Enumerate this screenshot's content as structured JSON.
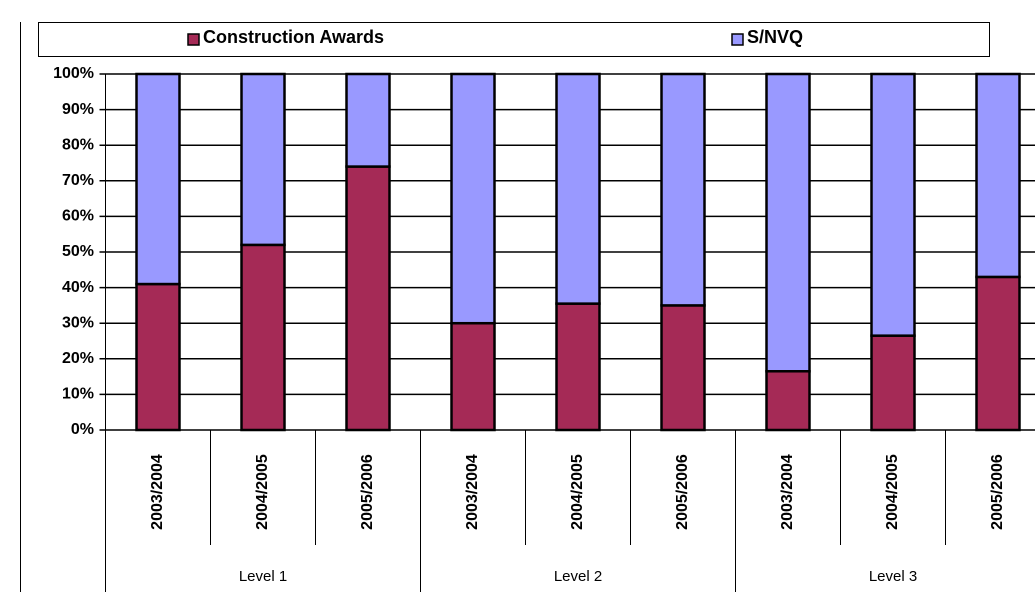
{
  "chart_data": {
    "type": "stacked_bar_percent",
    "categories": [
      "2003/2004",
      "2004/2005",
      "2005/2006",
      "2003/2004",
      "2004/2005",
      "2005/2006",
      "2003/2004",
      "2004/2005",
      "2005/2006"
    ],
    "category_groups": [
      "Level 1",
      "Level 2",
      "Level 3"
    ],
    "series": [
      {
        "name": "Construction Awards",
        "color": "#a52a56",
        "values": [
          41,
          52,
          74,
          30,
          35.5,
          35,
          16.5,
          26.5,
          43
        ]
      },
      {
        "name": "S/NVQ",
        "color": "#9999ff",
        "values": [
          59,
          48,
          26,
          70,
          64.5,
          65,
          83.5,
          73.5,
          57
        ]
      }
    ],
    "ylim": [
      0,
      100
    ],
    "yticks": [
      {
        "value": 0,
        "label": "0%"
      },
      {
        "value": 10,
        "label": "10%"
      },
      {
        "value": 20,
        "label": "20%"
      },
      {
        "value": 30,
        "label": "30%"
      },
      {
        "value": 40,
        "label": "40%"
      },
      {
        "value": 50,
        "label": "50%"
      },
      {
        "value": 60,
        "label": "60%"
      },
      {
        "value": 70,
        "label": "70%"
      },
      {
        "value": 80,
        "label": "80%"
      },
      {
        "value": 90,
        "label": "90%"
      },
      {
        "value": 100,
        "label": "100%"
      }
    ],
    "grid": true,
    "legend": "top"
  }
}
